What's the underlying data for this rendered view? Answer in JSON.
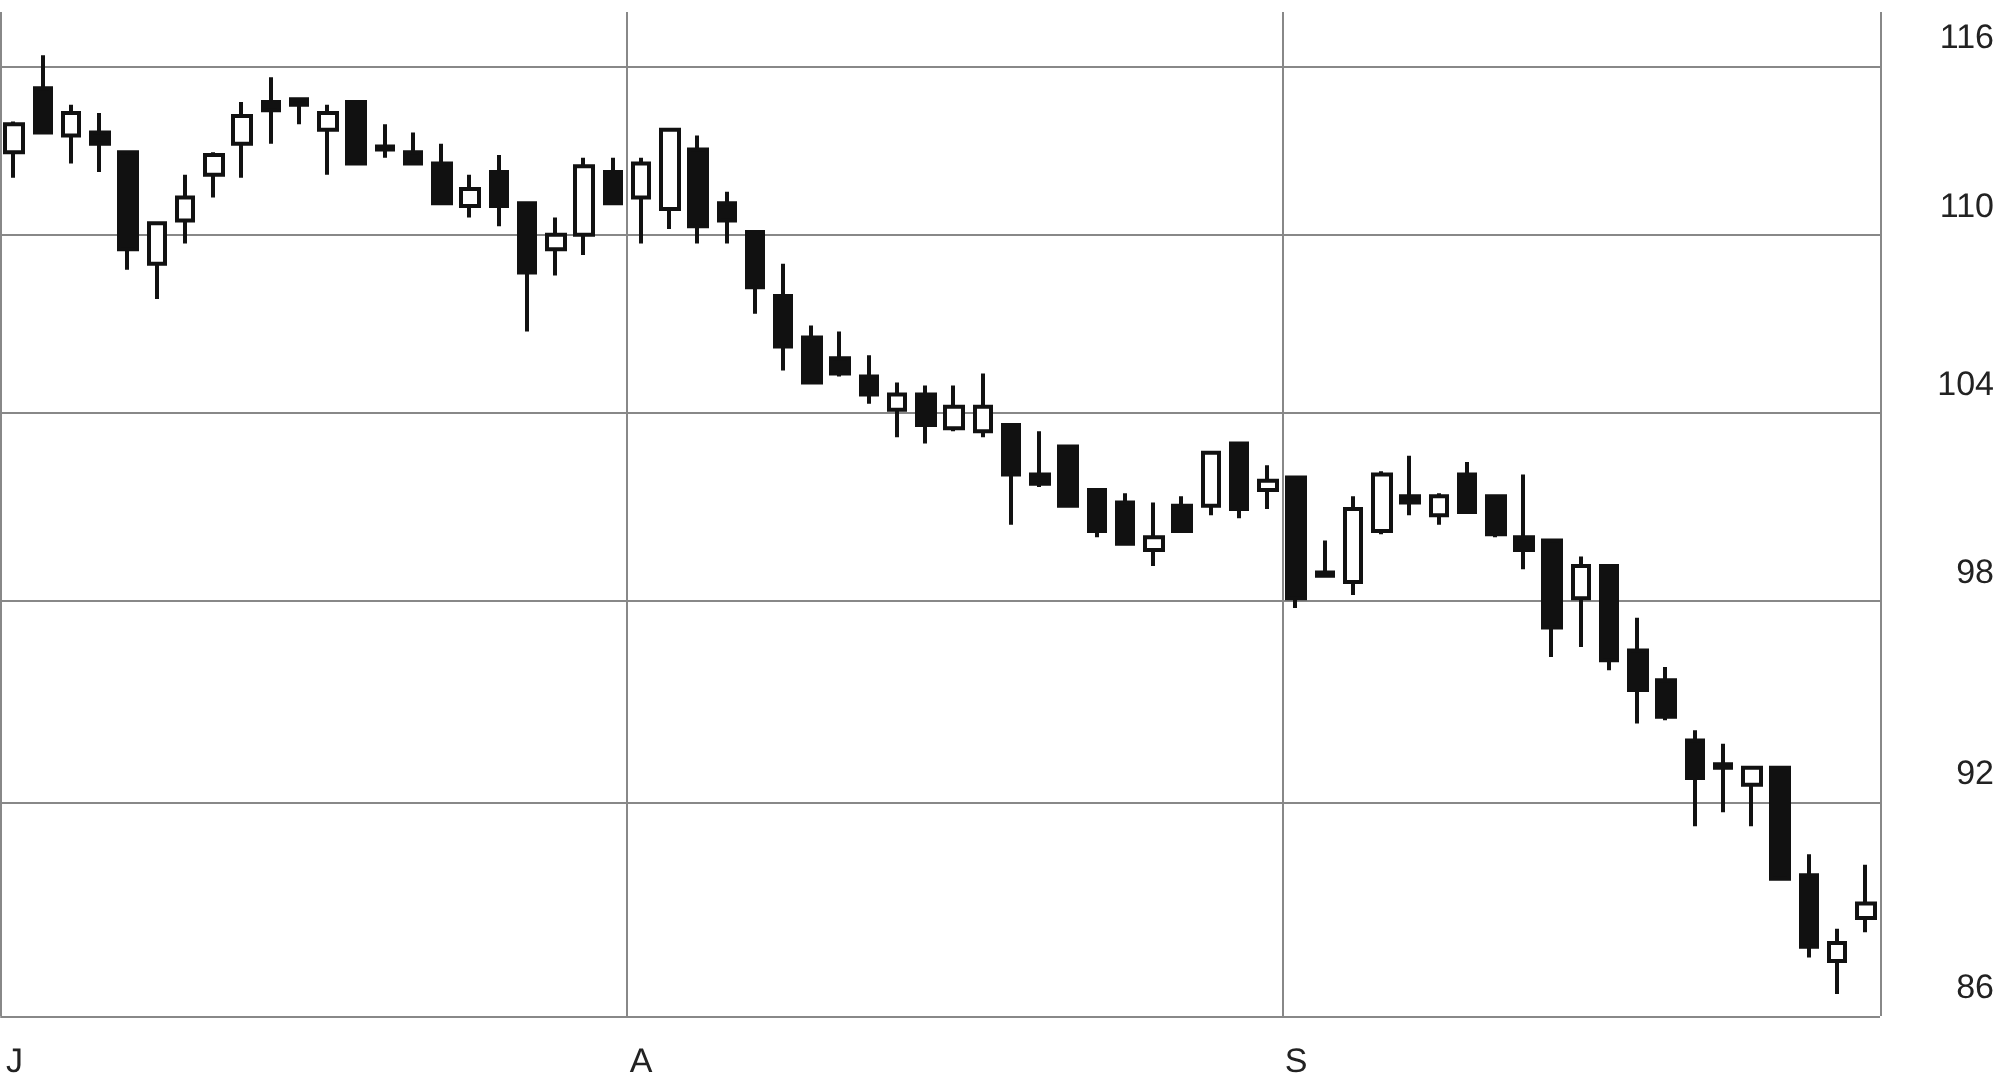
{
  "chart_data": {
    "type": "candlestick",
    "categories": [
      "J",
      null,
      null,
      null,
      null,
      null,
      null,
      null,
      null,
      null,
      null,
      null,
      null,
      null,
      null,
      null,
      null,
      null,
      null,
      null,
      null,
      null,
      "A",
      null,
      null,
      null,
      null,
      null,
      null,
      null,
      null,
      null,
      null,
      null,
      null,
      null,
      null,
      null,
      null,
      null,
      null,
      null,
      null,
      null,
      null,
      "S",
      null,
      null,
      null,
      null,
      null,
      null,
      null,
      null,
      null,
      null,
      null,
      null,
      null,
      null,
      null,
      null,
      null,
      null,
      null,
      null
    ],
    "ohlc": [
      [
        112.9,
        114.0,
        112.0,
        113.9
      ],
      [
        115.2,
        116.4,
        113.6,
        113.6
      ],
      [
        113.5,
        114.6,
        112.5,
        114.3
      ],
      [
        113.6,
        114.3,
        112.2,
        113.2
      ],
      [
        112.9,
        112.9,
        108.8,
        109.5
      ],
      [
        109.0,
        110.4,
        107.8,
        110.4
      ],
      [
        110.5,
        112.1,
        109.7,
        111.3
      ],
      [
        112.1,
        112.9,
        111.3,
        112.8
      ],
      [
        113.2,
        114.7,
        112.0,
        114.2
      ],
      [
        114.7,
        115.6,
        113.2,
        114.4
      ],
      [
        114.8,
        114.8,
        113.9,
        114.6
      ],
      [
        113.7,
        114.6,
        112.1,
        114.3
      ],
      [
        114.7,
        114.7,
        112.5,
        112.5
      ],
      [
        113.1,
        113.9,
        112.7,
        113.0
      ],
      [
        112.9,
        113.6,
        112.5,
        112.5
      ],
      [
        112.5,
        113.2,
        111.1,
        111.1
      ],
      [
        111.0,
        112.1,
        110.6,
        111.6
      ],
      [
        112.2,
        112.8,
        110.3,
        111.0
      ],
      [
        111.1,
        111.1,
        106.7,
        108.7
      ],
      [
        109.5,
        110.6,
        108.6,
        110.0
      ],
      [
        110.0,
        112.7,
        109.3,
        112.4
      ],
      [
        112.2,
        112.7,
        111.1,
        111.1
      ],
      [
        111.3,
        112.7,
        109.7,
        112.5
      ],
      [
        110.9,
        113.7,
        110.2,
        113.7
      ],
      [
        113.0,
        113.5,
        109.7,
        110.3
      ],
      [
        111.1,
        111.5,
        109.7,
        110.5
      ],
      [
        110.1,
        110.1,
        107.3,
        108.2
      ],
      [
        107.9,
        109.0,
        105.4,
        106.2
      ],
      [
        106.5,
        106.9,
        105.0,
        105.0
      ],
      [
        105.8,
        106.7,
        105.2,
        105.3
      ],
      [
        105.2,
        105.9,
        104.3,
        104.6
      ],
      [
        104.1,
        105.0,
        103.2,
        104.6
      ],
      [
        104.6,
        104.9,
        103.0,
        103.6
      ],
      [
        103.5,
        104.9,
        103.4,
        104.2
      ],
      [
        103.4,
        105.3,
        103.2,
        104.2
      ],
      [
        103.6,
        103.6,
        100.4,
        102.0
      ],
      [
        102.0,
        103.4,
        101.6,
        101.7
      ],
      [
        102.9,
        102.9,
        101.0,
        101.0
      ],
      [
        101.5,
        101.5,
        100.0,
        100.2
      ],
      [
        101.1,
        101.4,
        99.8,
        99.8
      ],
      [
        99.6,
        101.1,
        99.1,
        100.0
      ],
      [
        101.0,
        101.3,
        100.2,
        100.2
      ],
      [
        101.0,
        102.7,
        100.7,
        102.7
      ],
      [
        103.0,
        103.0,
        100.6,
        100.9
      ],
      [
        101.5,
        102.3,
        100.9,
        101.8
      ],
      [
        101.9,
        101.9,
        97.8,
        98.1
      ],
      [
        98.9,
        99.9,
        98.8,
        98.8
      ],
      [
        98.6,
        101.3,
        98.2,
        100.9
      ],
      [
        100.2,
        102.1,
        100.1,
        102.0
      ],
      [
        101.3,
        102.6,
        100.7,
        101.1
      ],
      [
        100.7,
        101.4,
        100.4,
        101.3
      ],
      [
        102.0,
        102.4,
        100.8,
        100.8
      ],
      [
        101.3,
        101.3,
        100.0,
        100.1
      ],
      [
        100.0,
        102.0,
        99.0,
        99.6
      ],
      [
        99.9,
        99.9,
        96.3,
        97.2
      ],
      [
        98.1,
        99.4,
        96.6,
        99.1
      ],
      [
        99.1,
        99.1,
        95.9,
        96.2
      ],
      [
        96.5,
        97.5,
        94.3,
        95.3
      ],
      [
        95.6,
        96.0,
        94.4,
        94.5
      ],
      [
        93.8,
        94.1,
        91.3,
        92.7
      ],
      [
        93.1,
        93.7,
        91.7,
        93.0
      ],
      [
        92.5,
        93.0,
        91.3,
        93.0
      ],
      [
        93.0,
        93.0,
        89.8,
        89.8
      ],
      [
        89.9,
        90.5,
        87.6,
        87.9
      ],
      [
        87.5,
        88.4,
        86.6,
        88.0
      ],
      [
        88.7,
        90.2,
        88.3,
        89.1
      ]
    ],
    "color": "#111111",
    "log": "y",
    "ylim": [
      86,
      118
    ],
    "yticks": [
      86,
      92,
      98,
      104,
      110,
      116
    ],
    "grid": true
  }
}
